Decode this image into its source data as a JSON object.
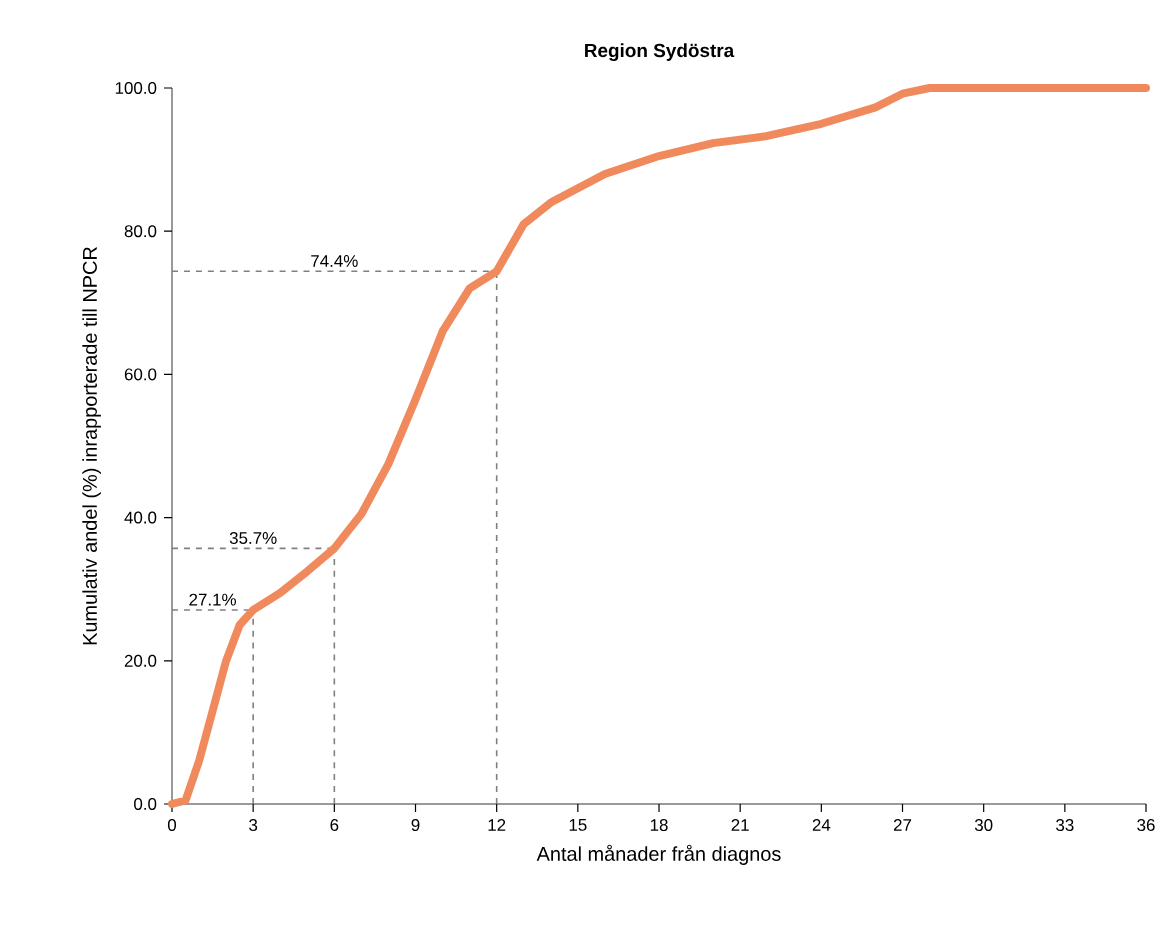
{
  "chart_data": {
    "type": "line",
    "title": "Region Sydöstra",
    "xlabel": "Antal månader från diagnos",
    "ylabel": "Kumulativ andel (%) inrapporterade till NPCR",
    "x": [
      0,
      0.5,
      1,
      1.5,
      2,
      2.5,
      3,
      4,
      5,
      6,
      7,
      8,
      9,
      10,
      11,
      12,
      13,
      14,
      15,
      16,
      18,
      20,
      22,
      24,
      26,
      27,
      28,
      30,
      33,
      36
    ],
    "series": [
      {
        "color": "#f08a5d",
        "values": [
          0,
          0.5,
          6,
          13,
          20,
          25,
          27.1,
          29.5,
          32.5,
          35.7,
          40.5,
          47.5,
          56.5,
          66,
          72,
          74.4,
          81,
          84,
          86,
          88,
          90.5,
          92.3,
          93.3,
          95,
          97.3,
          99.2,
          100,
          100,
          100,
          100
        ]
      }
    ],
    "xlim": [
      0,
      36
    ],
    "ylim": [
      0,
      100
    ],
    "xticks": [
      0,
      3,
      6,
      9,
      12,
      15,
      18,
      21,
      24,
      27,
      30,
      33,
      36
    ],
    "yticks": [
      {
        "value": 0,
        "label": "0.0"
      },
      {
        "value": 20,
        "label": "20.0"
      },
      {
        "value": 40,
        "label": "40.0"
      },
      {
        "value": 60,
        "label": "60.0"
      },
      {
        "value": 80,
        "label": "80.0"
      },
      {
        "value": 100,
        "label": "100.0"
      }
    ],
    "ref_lines": [
      {
        "axis": "y",
        "value": 27.1,
        "label": "27.1%",
        "line_style": "dashed",
        "color": "#808080"
      },
      {
        "axis": "y",
        "value": 35.7,
        "label": "35.7%",
        "line_style": "dashed",
        "color": "#808080"
      },
      {
        "axis": "y",
        "value": 74.4,
        "label": "74.4%",
        "line_style": "dashed",
        "color": "#808080"
      },
      {
        "axis": "x",
        "value": 3,
        "line_style": "dashed",
        "color": "#808080"
      },
      {
        "axis": "x",
        "value": 6,
        "line_style": "dashed",
        "color": "#808080"
      },
      {
        "axis": "x",
        "value": 12,
        "line_style": "dashed",
        "color": "#808080"
      }
    ],
    "grid": false,
    "marker": "none",
    "line_style": "solid"
  }
}
